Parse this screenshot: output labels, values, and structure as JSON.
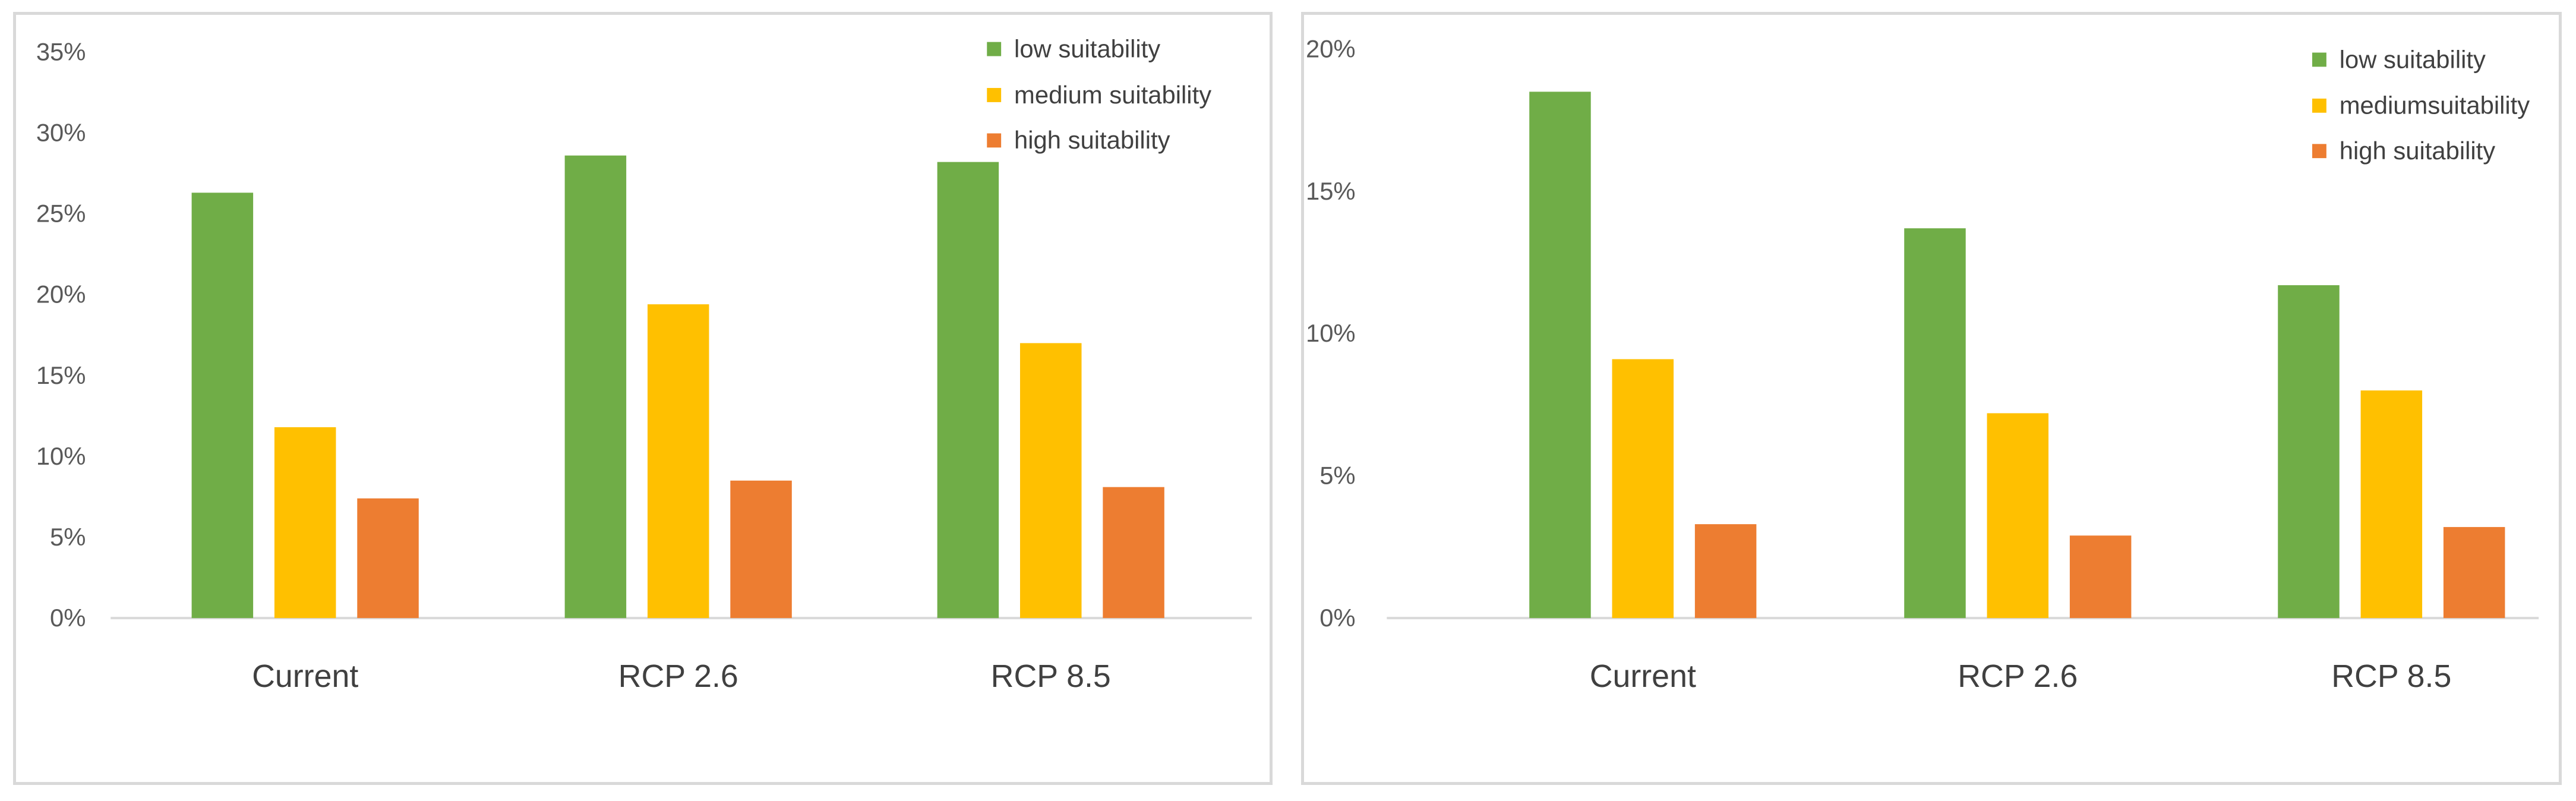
{
  "colors": {
    "low": "#70ad47",
    "medium": "#ffc000",
    "high": "#ed7d31",
    "axis": "#d9d9d9"
  },
  "chart_data": [
    {
      "type": "bar",
      "title": "",
      "xlabel": "",
      "ylabel": "",
      "categories": [
        "Current",
        "RCP 2.6",
        "RCP 8.5"
      ],
      "ylim": [
        0,
        35
      ],
      "yticks": [
        0,
        5,
        10,
        15,
        20,
        25,
        30,
        35
      ],
      "ytick_labels": [
        "0%",
        "5%",
        "10%",
        "15%",
        "20%",
        "25%",
        "30%",
        "35%"
      ],
      "legend_position": "top-right",
      "series": [
        {
          "name": "low suitability",
          "color_key": "low",
          "values": [
            26.3,
            28.6,
            28.2
          ]
        },
        {
          "name": "medium suitability",
          "color_key": "medium",
          "values": [
            11.8,
            19.4,
            17.0
          ]
        },
        {
          "name": "high suitability",
          "color_key": "high",
          "values": [
            7.4,
            8.5,
            8.1
          ]
        }
      ]
    },
    {
      "type": "bar",
      "title": "",
      "xlabel": "",
      "ylabel": "",
      "categories": [
        "Current",
        "RCP 2.6",
        "RCP 8.5"
      ],
      "ylim": [
        0,
        20
      ],
      "yticks": [
        0,
        5,
        10,
        15,
        20
      ],
      "ytick_labels": [
        "0%",
        "5%",
        "10%",
        "15%",
        "20%"
      ],
      "legend_position": "top-right",
      "series": [
        {
          "name": "low suitability",
          "color_key": "low",
          "values": [
            18.5,
            13.7,
            11.7
          ]
        },
        {
          "name": "mediumsuitability",
          "color_key": "medium",
          "values": [
            9.1,
            7.2,
            8.0
          ]
        },
        {
          "name": "high suitability",
          "color_key": "high",
          "values": [
            3.3,
            2.9,
            3.2
          ]
        }
      ]
    }
  ]
}
